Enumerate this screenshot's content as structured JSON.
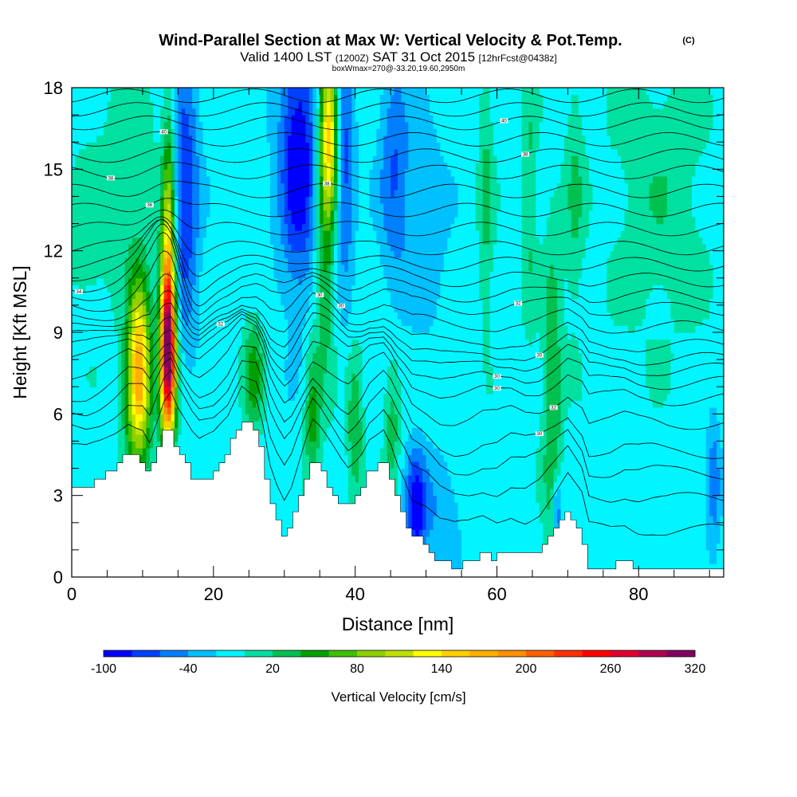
{
  "chart_data": {
    "type": "heatmap",
    "title": "Wind-Parallel Section at Max W: Vertical Velocity & Pot.Temp.",
    "title_mark": "(C)",
    "subtitle": {
      "valid": "Valid 1400 LST",
      "zulu": "(1200Z)",
      "date": "SAT 31 Oct 2015",
      "forecast": "[12hrFcst@0438z]"
    },
    "note": "boxWmax=270@-33.20,19.60,2950m",
    "xlabel": "Distance [nm]",
    "ylabel": "Height [Kft MSL]",
    "xlim": [
      0,
      92
    ],
    "ylim": [
      0,
      18
    ],
    "x_ticks": [
      0,
      20,
      40,
      60,
      80
    ],
    "y_ticks": [
      0,
      3,
      6,
      9,
      12,
      15,
      18
    ],
    "colorbar": {
      "label": "Vertical Velocity [cm/s]",
      "min": -100,
      "step": 20,
      "tick_labels": [
        "-100",
        "-40",
        "20",
        "80",
        "140",
        "200",
        "260",
        "320"
      ],
      "colors": [
        "#0000ff",
        "#0040ff",
        "#0080ff",
        "#00c0ff",
        "#00f5ff",
        "#00e0a0",
        "#00c050",
        "#00a000",
        "#40c000",
        "#90d000",
        "#c0e000",
        "#ffff00",
        "#ffd000",
        "#ffb000",
        "#ff9000",
        "#ff6000",
        "#ff3000",
        "#ff0000",
        "#e00030",
        "#b00050",
        "#800060"
      ]
    },
    "terrain_kft": [
      [
        0,
        3.3
      ],
      [
        2,
        3.3
      ],
      [
        4,
        3.6
      ],
      [
        6,
        4.0
      ],
      [
        8,
        4.5
      ],
      [
        10,
        4.3
      ],
      [
        11,
        3.8
      ],
      [
        12,
        4.5
      ],
      [
        13,
        5.2
      ],
      [
        14,
        5.5
      ],
      [
        15,
        4.8
      ],
      [
        16,
        4.3
      ],
      [
        17,
        3.8
      ],
      [
        18,
        3.5
      ],
      [
        20,
        3.8
      ],
      [
        22,
        4.5
      ],
      [
        24,
        5.8
      ],
      [
        26,
        5.5
      ],
      [
        27,
        4.5
      ],
      [
        28,
        3.0
      ],
      [
        29,
        2.2
      ],
      [
        30,
        1.6
      ],
      [
        31,
        2.0
      ],
      [
        32,
        2.8
      ],
      [
        33,
        3.6
      ],
      [
        34,
        4.3
      ],
      [
        35,
        4.0
      ],
      [
        36,
        3.6
      ],
      [
        37,
        3.2
      ],
      [
        38,
        2.8
      ],
      [
        39,
        2.5
      ],
      [
        40,
        2.8
      ],
      [
        41,
        3.2
      ],
      [
        42,
        3.8
      ],
      [
        44,
        4.3
      ],
      [
        45,
        3.8
      ],
      [
        46,
        3.0
      ],
      [
        47,
        2.4
      ],
      [
        48,
        1.6
      ],
      [
        50,
        1.2
      ],
      [
        52,
        0.6
      ],
      [
        54,
        0.4
      ],
      [
        56,
        0.5
      ],
      [
        58,
        0.8
      ],
      [
        60,
        0.7
      ],
      [
        62,
        1.0
      ],
      [
        64,
        0.8
      ],
      [
        66,
        1.0
      ],
      [
        68,
        1.6
      ],
      [
        70,
        2.3
      ],
      [
        72,
        1.5
      ],
      [
        73,
        0.4
      ],
      [
        76,
        0.4
      ],
      [
        78,
        0.6
      ],
      [
        80,
        0.4
      ],
      [
        82,
        0.4
      ],
      [
        84,
        0.3
      ],
      [
        88,
        0.3
      ],
      [
        92,
        0.3
      ]
    ],
    "w_background_cms": -10,
    "w_features": [
      {
        "x": 9.5,
        "z": 8.0,
        "sx": 1.1,
        "sz": 2.0,
        "w": 160
      },
      {
        "x": 9.2,
        "z": 6.0,
        "sx": 1.4,
        "sz": 1.6,
        "w": 60
      },
      {
        "x": 13.6,
        "z": 8.2,
        "sx": 0.75,
        "sz": 2.2,
        "w": 330
      },
      {
        "x": 13.6,
        "z": 11.5,
        "sx": 0.7,
        "sz": 2.2,
        "w": 90
      },
      {
        "x": 13.7,
        "z": 15.0,
        "sx": 0.6,
        "sz": 2.5,
        "w": 60
      },
      {
        "x": 36.3,
        "z": 16.5,
        "sx": 0.9,
        "sz": 2.0,
        "w": 160
      },
      {
        "x": 35.8,
        "z": 12.0,
        "sx": 1.0,
        "sz": 3.2,
        "w": 60
      },
      {
        "x": 25.6,
        "z": 7.5,
        "sx": 1.0,
        "sz": 1.5,
        "w": 60
      },
      {
        "x": 34.0,
        "z": 6.0,
        "sx": 0.8,
        "sz": 1.8,
        "w": 60
      },
      {
        "x": 40.0,
        "z": 5.5,
        "sx": 0.8,
        "sz": 2.0,
        "w": 50
      },
      {
        "x": 45.2,
        "z": 5.5,
        "sx": 0.8,
        "sz": 1.8,
        "w": 40
      },
      {
        "x": 67.8,
        "z": 6.5,
        "sx": 1.0,
        "sz": 4.5,
        "w": 50
      },
      {
        "x": 58.5,
        "z": 14.0,
        "sx": 0.8,
        "sz": 3.5,
        "w": 35
      },
      {
        "x": 64.5,
        "z": 14.0,
        "sx": 0.8,
        "sz": 3.5,
        "w": 35
      },
      {
        "x": 71.0,
        "z": 14.0,
        "sx": 1.0,
        "sz": 3.5,
        "w": 30
      },
      {
        "x": 8.0,
        "z": 14.5,
        "sx": 3.0,
        "sz": 3.5,
        "w": 25
      },
      {
        "x": 83.0,
        "z": 14.0,
        "sx": 5.0,
        "sz": 4.0,
        "w": 25
      },
      {
        "x": 2.0,
        "z": 12.5,
        "sx": 2.0,
        "sz": 2.5,
        "w": 20
      },
      {
        "x": 16.0,
        "z": 14.0,
        "sx": 1.4,
        "sz": 3.5,
        "w": -70
      },
      {
        "x": 32.0,
        "z": 15.5,
        "sx": 2.0,
        "sz": 3.5,
        "w": -90
      },
      {
        "x": 38.5,
        "z": 15.0,
        "sx": 1.0,
        "sz": 3.0,
        "w": -60
      },
      {
        "x": 45.5,
        "z": 15.0,
        "sx": 1.5,
        "sz": 3.0,
        "w": -50
      },
      {
        "x": 50.0,
        "z": 13.0,
        "sx": 2.0,
        "sz": 2.5,
        "w": -30
      },
      {
        "x": 48.6,
        "z": 2.5,
        "sx": 1.0,
        "sz": 1.5,
        "w": -80
      },
      {
        "x": 68.5,
        "z": 2.3,
        "sx": 0.5,
        "sz": 1.0,
        "w": -60
      },
      {
        "x": 90.6,
        "z": 3.5,
        "sx": 0.7,
        "sz": 1.5,
        "w": -50
      },
      {
        "x": 52.0,
        "z": 2.5,
        "sx": 2.0,
        "sz": 1.5,
        "w": -30
      }
    ],
    "theta_contours": [
      {
        "z0": 1.4,
        "label": "",
        "label_x": -1
      },
      {
        "z0": 2.6,
        "label": "",
        "label_x": -1
      },
      {
        "z0": 3.6,
        "label": "",
        "label_x": -1
      },
      {
        "z0": 4.4,
        "label": "30",
        "label_x": 66
      },
      {
        "z0": 5.5,
        "label": "32",
        "label_x": 68
      },
      {
        "z0": 6.4,
        "label": "30",
        "label_x": 60
      },
      {
        "z0": 7.0,
        "label": "30",
        "label_x": 60
      },
      {
        "z0": 7.5,
        "label": "32",
        "label_x": 21
      },
      {
        "z0": 7.9,
        "label": "30",
        "label_x": 66
      },
      {
        "z0": 8.4,
        "label": "30",
        "label_x": 35
      },
      {
        "z0": 9.1,
        "label": "30",
        "label_x": 38
      },
      {
        "z0": 9.8,
        "label": "32",
        "label_x": 63
      },
      {
        "z0": 10.3,
        "label": "34",
        "label_x": 1
      },
      {
        "z0": 10.9,
        "label": "",
        "label_x": -1
      },
      {
        "z0": 11.5,
        "label": "",
        "label_x": -1
      },
      {
        "z0": 12.1,
        "label": "",
        "label_x": -1
      },
      {
        "z0": 12.8,
        "label": "",
        "label_x": -1
      },
      {
        "z0": 13.5,
        "label": "36",
        "label_x": 11
      },
      {
        "z0": 14.2,
        "label": "38",
        "label_x": 36
      },
      {
        "z0": 14.9,
        "label": "38",
        "label_x": 5.5
      },
      {
        "z0": 15.5,
        "label": "38",
        "label_x": 64
      },
      {
        "z0": 16.1,
        "label": "40",
        "label_x": 13
      },
      {
        "z0": 16.7,
        "label": "40",
        "label_x": 61
      },
      {
        "z0": 17.2,
        "label": "",
        "label_x": -1
      },
      {
        "z0": 17.7,
        "label": "",
        "label_x": -1
      }
    ]
  }
}
